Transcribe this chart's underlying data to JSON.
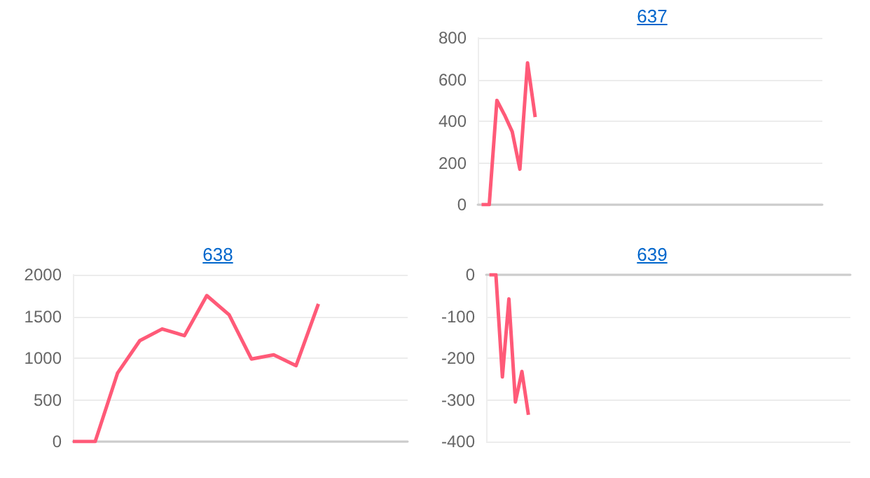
{
  "chart_data": [
    {
      "type": "line",
      "title": "637",
      "tick_labels": "y",
      "grid": "y",
      "marker": "none",
      "categories": [
        null,
        null,
        null,
        null,
        null,
        null,
        null,
        null,
        null,
        null,
        null,
        null,
        null,
        null,
        null,
        null,
        null,
        null,
        null,
        null,
        null,
        null,
        null,
        null,
        null,
        null,
        null,
        null,
        null,
        null,
        null,
        null,
        null,
        null,
        null,
        null,
        null,
        null,
        null,
        null,
        null,
        null,
        null,
        null,
        null
      ],
      "series": [
        {
          "color": "#ff5a78",
          "values": [
            0,
            0,
            500,
            430,
            350,
            170,
            680,
            420,
            null,
            null,
            null,
            null,
            null,
            null,
            null,
            null,
            null,
            null,
            null,
            null,
            null,
            null,
            null,
            null,
            null,
            null,
            null,
            null,
            null,
            null,
            null,
            null,
            null,
            null,
            null,
            null,
            null,
            null,
            null,
            null,
            null,
            null,
            null,
            null,
            null
          ]
        }
      ],
      "ylim": [
        0,
        800
      ],
      "yticks": [
        0,
        200,
        400,
        600,
        800
      ]
    },
    {
      "type": "line",
      "title": "638",
      "tick_labels": "y",
      "grid": "y",
      "marker": "none",
      "categories": [
        null,
        null,
        null,
        null,
        null,
        null,
        null,
        null,
        null,
        null,
        null,
        null,
        null,
        null,
        null,
        null
      ],
      "series": [
        {
          "color": "#ff5a78",
          "values": [
            0,
            0,
            820,
            1210,
            1350,
            1270,
            1750,
            1520,
            990,
            1040,
            910,
            1650,
            null,
            null,
            null,
            null
          ]
        }
      ],
      "ylim": [
        0,
        2000
      ],
      "yticks": [
        0,
        500,
        1000,
        1500,
        2000
      ]
    },
    {
      "type": "line",
      "title": "639",
      "tick_labels": "y",
      "grid": "y",
      "marker": "none",
      "categories": [
        null,
        null,
        null,
        null,
        null,
        null,
        null,
        null,
        null,
        null,
        null,
        null,
        null,
        null,
        null,
        null,
        null,
        null,
        null,
        null,
        null,
        null,
        null,
        null,
        null,
        null,
        null,
        null,
        null,
        null,
        null,
        null,
        null,
        null,
        null,
        null,
        null,
        null,
        null,
        null,
        null,
        null,
        null,
        null,
        null,
        null,
        null,
        null,
        null,
        null,
        null,
        null,
        null,
        null,
        null,
        null
      ],
      "series": [
        {
          "color": "#ff5a78",
          "values": [
            0,
            0,
            -245,
            -58,
            -305,
            -232,
            -336,
            null,
            null,
            null,
            null,
            null,
            null,
            null,
            null,
            null,
            null,
            null,
            null,
            null,
            null,
            null,
            null,
            null,
            null,
            null,
            null,
            null,
            null,
            null,
            null,
            null,
            null,
            null,
            null,
            null,
            null,
            null,
            null,
            null,
            null,
            null,
            null,
            null,
            null,
            null,
            null,
            null,
            null,
            null,
            null,
            null,
            null,
            null,
            null,
            null
          ]
        }
      ],
      "ylim": [
        -400,
        0
      ],
      "yticks": [
        -400,
        -300,
        -200,
        -100,
        0
      ]
    }
  ]
}
